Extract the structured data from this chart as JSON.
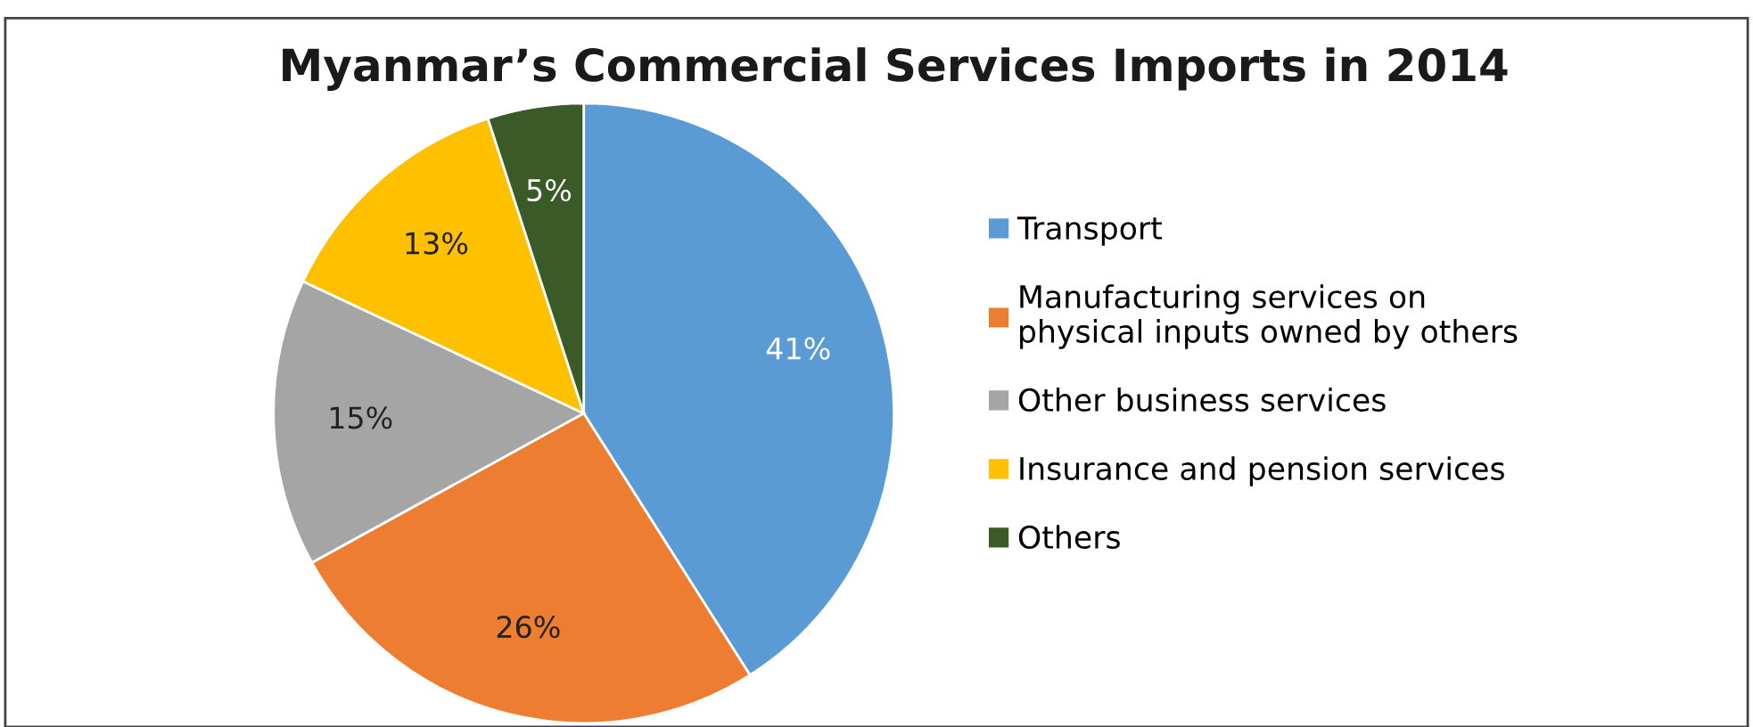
{
  "chart_data": {
    "type": "pie",
    "title": "Myanmar’s Commercial Services Imports in 2014",
    "categories": [
      "Transport",
      "Manufacturing services on\nphysical inputs owned by others",
      "Other business services",
      "Insurance and pension services",
      "Others"
    ],
    "values": [
      41,
      26,
      15,
      13,
      5
    ],
    "colors": [
      "#5b9bd5",
      "#ed7d31",
      "#a5a5a5",
      "#ffc000",
      "#3a5a28"
    ],
    "value_labels": [
      "41%",
      "26%",
      "15%",
      "13%",
      "5%"
    ],
    "legend": "right"
  }
}
